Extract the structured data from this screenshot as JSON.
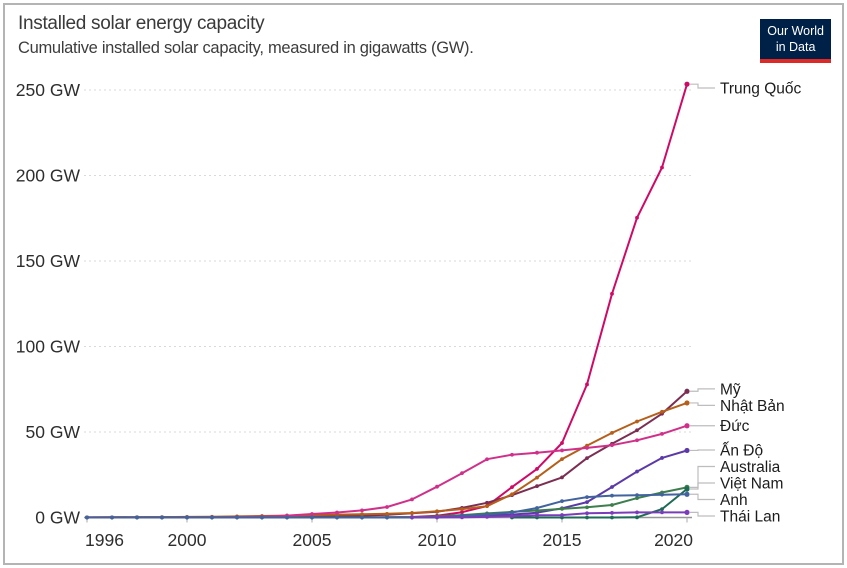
{
  "header": {
    "title": "Installed solar energy capacity",
    "subtitle": "Cumulative installed solar capacity, measured in gigawatts (GW)."
  },
  "logo": {
    "line1": "Our World",
    "line2": "in Data",
    "bg_color": "#002147",
    "stripe_color": "#dd2a27"
  },
  "chart_data": {
    "type": "line",
    "title": "Installed solar energy capacity",
    "subtitle": "Cumulative installed solar capacity, measured in gigawatts (GW).",
    "unit": "GW",
    "grid": "horizontal-dashed",
    "legend_position": "right-edge-entity-labels",
    "xlim": [
      1996,
      2020
    ],
    "ylim": [
      0,
      250
    ],
    "x": [
      1996,
      1997,
      1998,
      1999,
      2000,
      2001,
      2002,
      2003,
      2004,
      2005,
      2006,
      2007,
      2008,
      2009,
      2010,
      2011,
      2012,
      2013,
      2014,
      2015,
      2016,
      2017,
      2018,
      2019,
      2020
    ],
    "x_tick_years": [
      1996,
      2000,
      2005,
      2010,
      2015,
      2020
    ],
    "y_ticks": [
      0,
      50,
      100,
      150,
      200,
      250
    ],
    "y_tick_suffix": " GW",
    "series": [
      {
        "name": "Trung Quốc",
        "color": "#CF0A66",
        "values": [
          0.02,
          0.02,
          0.03,
          0.03,
          0.03,
          0.04,
          0.05,
          0.06,
          0.06,
          0.07,
          0.08,
          0.1,
          0.14,
          0.3,
          1.02,
          3.11,
          6.72,
          17.76,
          28.4,
          43.55,
          77.81,
          130.82,
          175.29,
          204.68,
          253.41
        ]
      },
      {
        "name": "Mỹ",
        "color": "#7C2E52",
        "values": [
          0.08,
          0.09,
          0.1,
          0.12,
          0.14,
          0.17,
          0.21,
          0.28,
          0.38,
          0.55,
          0.77,
          1.02,
          1.62,
          2.53,
          3.38,
          5.64,
          8.61,
          13.05,
          18.32,
          23.44,
          34.71,
          43.11,
          51.0,
          60.68,
          73.81
        ]
      },
      {
        "name": "Nhật Bản",
        "color": "#B55F1B",
        "values": [
          0.06,
          0.09,
          0.13,
          0.21,
          0.33,
          0.45,
          0.64,
          0.86,
          1.13,
          1.42,
          1.71,
          1.92,
          2.14,
          2.63,
          3.62,
          4.89,
          6.63,
          13.6,
          23.34,
          34.15,
          42.04,
          49.5,
          56.16,
          61.84,
          67.0
        ]
      },
      {
        "name": "Đức",
        "color": "#D0308A",
        "values": [
          0.03,
          0.04,
          0.05,
          0.07,
          0.11,
          0.19,
          0.3,
          0.44,
          1.11,
          2.06,
          2.9,
          4.17,
          6.12,
          10.57,
          18.01,
          25.92,
          34.08,
          36.71,
          37.9,
          39.22,
          40.68,
          42.29,
          45.16,
          48.91,
          53.67
        ]
      },
      {
        "name": "Ấn Độ",
        "color": "#5B3AA8",
        "values": [
          0.001,
          0.001,
          0.001,
          0.001,
          0.001,
          0.002,
          0.004,
          0.005,
          0.006,
          0.008,
          0.01,
          0.02,
          0.02,
          0.01,
          0.07,
          0.57,
          1.21,
          1.72,
          2.79,
          5.39,
          9.01,
          17.82,
          26.87,
          34.83,
          39.21
        ]
      },
      {
        "name": "Australia",
        "color": "#3C7E4C",
        "values": [
          0.02,
          0.02,
          0.03,
          0.03,
          0.03,
          0.03,
          0.04,
          0.05,
          0.05,
          0.06,
          0.07,
          0.08,
          0.1,
          0.19,
          0.64,
          1.41,
          2.41,
          3.29,
          4.08,
          5.03,
          5.94,
          7.33,
          11.33,
          14.6,
          17.63
        ]
      },
      {
        "name": "Việt Nam",
        "color": "#1E6B55",
        "values": [
          null,
          null,
          null,
          null,
          null,
          null,
          null,
          null,
          null,
          null,
          null,
          null,
          null,
          null,
          null,
          null,
          null,
          0.004,
          0.004,
          0.004,
          0.005,
          0.008,
          0.105,
          4.9,
          16.66
        ]
      },
      {
        "name": "Anh",
        "color": "#41639E",
        "values": [
          0.001,
          0.001,
          0.001,
          0.001,
          0.002,
          0.003,
          0.004,
          0.006,
          0.008,
          0.011,
          0.014,
          0.018,
          0.023,
          0.027,
          0.095,
          1.0,
          1.75,
          2.94,
          5.53,
          9.54,
          11.93,
          12.78,
          13.06,
          13.35,
          13.58
        ]
      },
      {
        "name": "Thái Lan",
        "color": "#7A3CB9",
        "values": [
          null,
          null,
          null,
          null,
          null,
          null,
          null,
          null,
          null,
          null,
          null,
          null,
          null,
          0.04,
          0.05,
          0.08,
          0.38,
          0.83,
          1.3,
          1.42,
          2.45,
          2.7,
          2.97,
          2.98,
          2.98
        ]
      }
    ]
  }
}
